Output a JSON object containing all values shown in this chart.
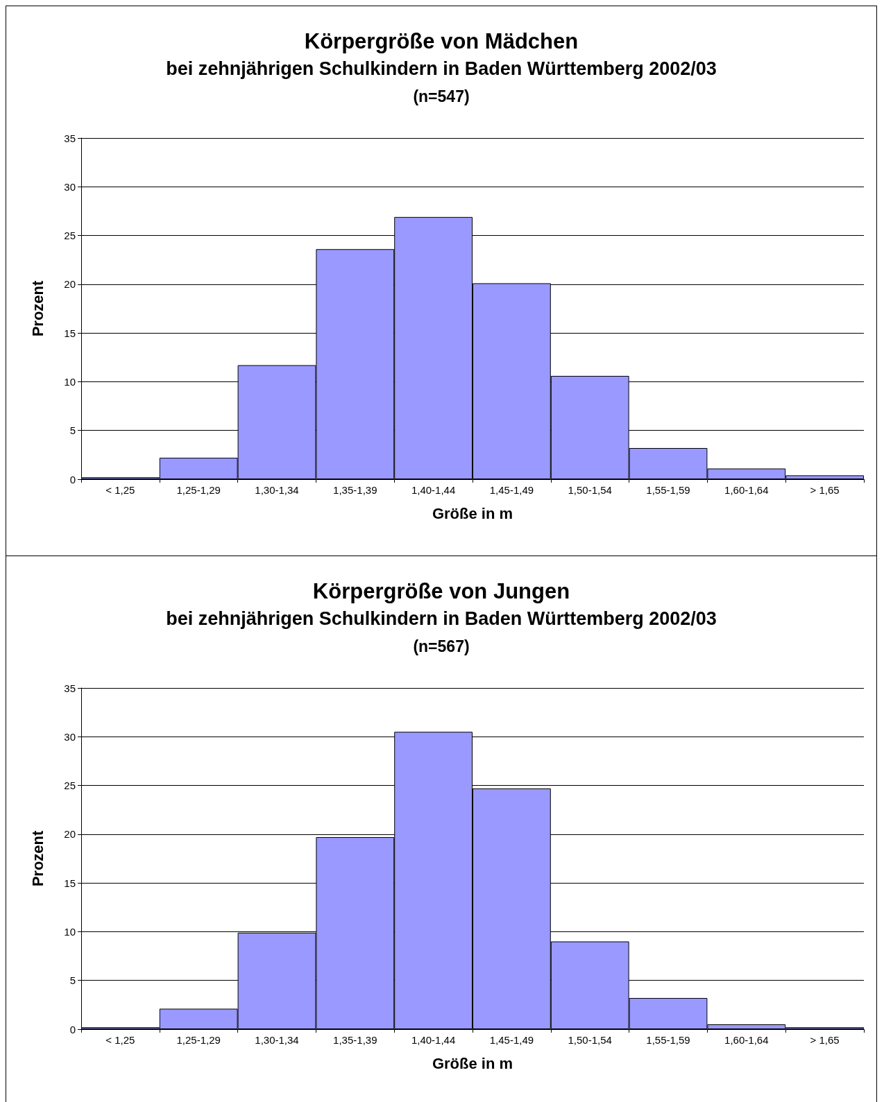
{
  "chart_data": [
    {
      "type": "bar",
      "title": "Körpergröße von Mädchen",
      "subtitle": "bei zehnjährigen Schulkindern in Baden Württemberg 2002/03",
      "annotations": [
        "(n=547)"
      ],
      "xlabel": "Größe in m",
      "ylabel": "Prozent",
      "categories": [
        "< 1,25",
        "1,25-1,29",
        "1,30-1,34",
        "1,35-1,39",
        "1,40-1,44",
        "1,45-1,49",
        "1,50-1,54",
        "1,55-1,59",
        "1,60-1,64",
        "> 1,65"
      ],
      "series": [
        {
          "color": "#9999ff",
          "values": [
            0.2,
            2.2,
            11.7,
            23.6,
            26.9,
            20.1,
            10.6,
            3.2,
            1.1,
            0.4
          ]
        }
      ],
      "ylim": [
        0,
        35
      ],
      "yticks": [
        0,
        5,
        10,
        15,
        20,
        25,
        30,
        35
      ],
      "grid": "y"
    },
    {
      "type": "bar",
      "title": "Körpergröße von Jungen",
      "subtitle": "bei zehnjährigen Schulkindern in Baden Württemberg 2002/03",
      "annotations": [
        "(n=567)"
      ],
      "xlabel": "Größe in m",
      "ylabel": "Prozent",
      "categories": [
        "< 1,25",
        "1,25-1,29",
        "1,30-1,34",
        "1,35-1,39",
        "1,40-1,44",
        "1,45-1,49",
        "1,50-1,54",
        "1,55-1,59",
        "1,60-1,64",
        "> 1,65"
      ],
      "series": [
        {
          "color": "#9999ff",
          "values": [
            0.2,
            2.1,
            9.9,
            19.7,
            30.5,
            24.7,
            9.0,
            3.2,
            0.5,
            0.2
          ]
        }
      ],
      "ylim": [
        0,
        35
      ],
      "yticks": [
        0,
        5,
        10,
        15,
        20,
        25,
        30,
        35
      ],
      "grid": "y"
    }
  ]
}
